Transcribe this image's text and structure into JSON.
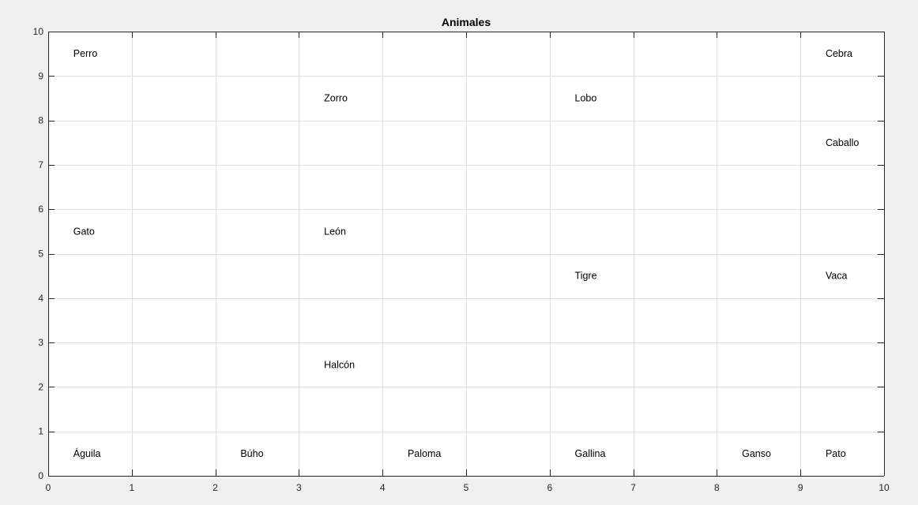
{
  "chart_data": {
    "type": "scatter",
    "title": "Animales",
    "xlabel": "",
    "ylabel": "",
    "xlim": [
      0,
      10
    ],
    "ylim": [
      0,
      10
    ],
    "xticks": [
      0,
      1,
      2,
      3,
      4,
      5,
      6,
      7,
      8,
      9,
      10
    ],
    "yticks": [
      0,
      1,
      2,
      3,
      4,
      5,
      6,
      7,
      8,
      9,
      10
    ],
    "grid": true,
    "annotations": [
      {
        "text": "Perro",
        "x": 0.3,
        "y": 9.5
      },
      {
        "text": "Zorro",
        "x": 3.3,
        "y": 8.5
      },
      {
        "text": "Lobo",
        "x": 6.3,
        "y": 8.5
      },
      {
        "text": "Cebra",
        "x": 9.3,
        "y": 9.5
      },
      {
        "text": "Caballo",
        "x": 9.3,
        "y": 7.5
      },
      {
        "text": "Gato",
        "x": 0.3,
        "y": 5.5
      },
      {
        "text": "León",
        "x": 3.3,
        "y": 5.5
      },
      {
        "text": "Tigre",
        "x": 6.3,
        "y": 4.5
      },
      {
        "text": "Vaca",
        "x": 9.3,
        "y": 4.5
      },
      {
        "text": "Halcón",
        "x": 3.3,
        "y": 2.5
      },
      {
        "text": "Águila",
        "x": 0.3,
        "y": 0.5
      },
      {
        "text": "Búho",
        "x": 2.3,
        "y": 0.5
      },
      {
        "text": "Paloma",
        "x": 4.3,
        "y": 0.5
      },
      {
        "text": "Gallina",
        "x": 6.3,
        "y": 0.5
      },
      {
        "text": "Ganso",
        "x": 8.3,
        "y": 0.5
      },
      {
        "text": "Pato",
        "x": 9.3,
        "y": 0.5
      }
    ]
  },
  "colors": {
    "figure_background": "#f0f0f0",
    "axes_background": "#ffffff",
    "grid": "#dfdfdf",
    "axis": "#262626",
    "text": "#000000"
  }
}
